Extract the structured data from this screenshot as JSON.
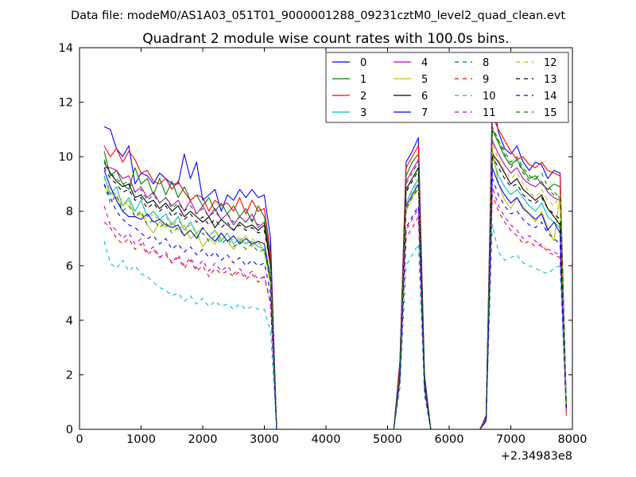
{
  "chart_data": {
    "type": "line",
    "suptitle": "Data file: modeM0/AS1A03_051T01_9000001288_09231cztM0_level2_quad_clean.evt",
    "title": "Quadrant 2 module wise count rates with 100.0s bins.",
    "xlabel": "",
    "ylabel": "",
    "x_offset_label": "+2.34983e8",
    "xlim": [
      0,
      8000
    ],
    "ylim": [
      0,
      14
    ],
    "xticks": [
      0,
      1000,
      2000,
      3000,
      4000,
      5000,
      6000,
      7000,
      8000
    ],
    "yticks": [
      0,
      2,
      4,
      6,
      8,
      10,
      12,
      14
    ],
    "legend_position": "top-right",
    "x": [
      400,
      500,
      600,
      700,
      800,
      900,
      1000,
      1100,
      1200,
      1300,
      1400,
      1500,
      1600,
      1700,
      1800,
      1900,
      2000,
      2100,
      2200,
      2300,
      2400,
      2500,
      2600,
      2700,
      2800,
      2900,
      3000,
      3100,
      3200,
      3300,
      5100,
      5200,
      5300,
      5400,
      5500,
      5600,
      5700,
      5800,
      6500,
      6600,
      6700,
      6800,
      6900,
      7000,
      7100,
      7200,
      7300,
      7400,
      7500,
      7600,
      7700,
      7800,
      7900
    ],
    "series": [
      {
        "name": "0",
        "color": "#0000ff",
        "dash": "solid",
        "values": [
          11.1,
          11.0,
          10.3,
          10.0,
          10.4,
          9.0,
          9.4,
          9.3,
          9.0,
          9.4,
          9.2,
          9.0,
          9.0,
          10.1,
          9.2,
          9.8,
          8.4,
          8.6,
          8.8,
          8.0,
          8.6,
          8.4,
          8.8,
          8.5,
          8.8,
          8.5,
          8.6,
          7.0,
          0.0,
          0.0,
          0.0,
          2.5,
          9.8,
          10.2,
          10.7,
          2.0,
          0.0,
          0.0,
          0.0,
          0.5,
          12.2,
          10.9,
          10.3,
          10.1,
          10.4,
          9.8,
          9.5,
          9.8,
          9.7,
          9.2,
          9.5,
          9.4,
          1.0
        ]
      },
      {
        "name": "1",
        "color": "#008000",
        "dash": "solid",
        "values": [
          10.2,
          9.3,
          9.5,
          9.0,
          8.8,
          9.6,
          9.0,
          9.2,
          8.6,
          9.2,
          8.6,
          9.1,
          8.5,
          8.9,
          8.4,
          8.6,
          8.2,
          8.5,
          8.0,
          8.3,
          7.9,
          8.2,
          7.8,
          8.1,
          7.6,
          8.2,
          7.8,
          6.3,
          0.0,
          0.0,
          0.0,
          2.3,
          9.3,
          9.8,
          10.1,
          1.9,
          0.0,
          0.0,
          0.0,
          0.5,
          11.0,
          10.5,
          10.0,
          9.7,
          9.9,
          9.5,
          9.2,
          9.3,
          9.0,
          8.8,
          9.0,
          8.9,
          0.9
        ]
      },
      {
        "name": "2",
        "color": "#ff0000",
        "dash": "solid",
        "values": [
          10.4,
          10.0,
          10.3,
          9.8,
          10.2,
          9.9,
          9.4,
          9.5,
          9.1,
          9.0,
          9.2,
          8.8,
          9.1,
          8.7,
          8.4,
          8.6,
          8.5,
          8.0,
          8.4,
          8.2,
          8.3,
          8.0,
          8.5,
          7.9,
          8.4,
          8.0,
          8.1,
          6.5,
          0.0,
          0.0,
          0.0,
          2.4,
          9.6,
          10.0,
          10.4,
          1.9,
          0.0,
          0.0,
          0.0,
          0.5,
          11.5,
          11.0,
          10.6,
          10.2,
          9.9,
          10.0,
          9.7,
          9.6,
          9.8,
          9.5,
          9.4,
          9.3,
          0.5
        ]
      },
      {
        "name": "3",
        "color": "#00bfbf",
        "dash": "solid",
        "values": [
          9.3,
          8.6,
          8.9,
          8.2,
          8.5,
          8.0,
          8.4,
          7.8,
          8.0,
          7.7,
          7.9,
          7.5,
          7.8,
          7.3,
          7.6,
          7.2,
          7.4,
          7.1,
          7.3,
          6.9,
          7.2,
          6.8,
          7.0,
          6.8,
          6.9,
          6.7,
          6.6,
          5.5,
          0.0,
          0.0,
          0.0,
          2.0,
          8.3,
          8.8,
          9.2,
          1.7,
          0.0,
          0.0,
          0.0,
          0.4,
          10.0,
          9.3,
          8.9,
          8.6,
          8.8,
          8.5,
          8.2,
          8.0,
          8.3,
          7.8,
          7.6,
          7.4,
          0.8
        ]
      },
      {
        "name": "4",
        "color": "#bf00bf",
        "dash": "solid",
        "values": [
          9.6,
          9.6,
          9.5,
          9.2,
          9.3,
          8.7,
          8.9,
          8.5,
          8.7,
          8.3,
          8.5,
          8.2,
          8.4,
          8.0,
          8.4,
          7.9,
          8.2,
          7.8,
          8.1,
          7.7,
          7.9,
          7.5,
          7.8,
          7.6,
          7.9,
          7.4,
          7.6,
          6.2,
          0.0,
          0.0,
          0.0,
          2.2,
          9.1,
          9.5,
          9.9,
          1.8,
          0.0,
          0.0,
          0.0,
          0.5,
          10.6,
          10.1,
          9.7,
          9.4,
          9.6,
          9.2,
          9.0,
          8.9,
          9.1,
          8.7,
          8.5,
          8.4,
          0.8
        ]
      },
      {
        "name": "5",
        "color": "#bfbf00",
        "dash": "solid",
        "values": [
          8.9,
          8.7,
          8.5,
          8.2,
          8.4,
          7.8,
          7.9,
          7.5,
          7.2,
          7.6,
          7.4,
          7.6,
          7.3,
          7.5,
          7.0,
          7.2,
          6.7,
          7.0,
          6.8,
          7.2,
          6.9,
          6.6,
          6.9,
          7.1,
          6.7,
          6.9,
          6.5,
          5.3,
          0.0,
          0.0,
          0.0,
          1.9,
          8.0,
          8.5,
          8.8,
          1.6,
          0.0,
          0.0,
          0.0,
          0.4,
          10.3,
          9.0,
          8.4,
          8.1,
          8.5,
          8.2,
          7.9,
          7.6,
          8.0,
          7.4,
          6.9,
          8.6,
          0.7
        ]
      },
      {
        "name": "6",
        "color": "#000000",
        "dash": "solid",
        "values": [
          9.8,
          9.4,
          9.1,
          8.9,
          9.0,
          8.5,
          8.6,
          8.3,
          8.4,
          8.1,
          8.3,
          8.0,
          8.2,
          7.8,
          8.0,
          7.8,
          7.6,
          7.8,
          7.4,
          7.7,
          7.5,
          7.3,
          7.6,
          7.4,
          7.5,
          7.3,
          7.5,
          6.0,
          0.0,
          0.0,
          0.0,
          2.1,
          8.8,
          9.2,
          9.6,
          1.8,
          0.0,
          0.0,
          0.0,
          0.4,
          10.1,
          9.8,
          9.4,
          9.0,
          9.2,
          8.8,
          8.6,
          8.4,
          8.6,
          8.1,
          7.8,
          7.5,
          0.8
        ]
      },
      {
        "name": "7",
        "color": "#0000ff",
        "dash": "solid",
        "values": [
          9.5,
          8.9,
          8.4,
          8.0,
          7.8,
          7.8,
          7.7,
          7.9,
          7.6,
          7.7,
          7.5,
          7.4,
          7.5,
          7.1,
          7.3,
          7.0,
          7.4,
          7.1,
          6.9,
          7.2,
          6.9,
          7.1,
          6.8,
          7.0,
          6.8,
          6.9,
          6.8,
          5.5,
          0.0,
          0.0,
          0.0,
          2.0,
          8.2,
          8.6,
          9.0,
          1.6,
          0.0,
          0.0,
          0.0,
          0.4,
          9.6,
          9.0,
          8.6,
          8.3,
          8.5,
          8.1,
          7.9,
          7.7,
          7.9,
          7.3,
          7.6,
          7.2,
          0.8
        ]
      },
      {
        "name": "8",
        "color": "#008000",
        "dash": "dashed",
        "values": [
          9.0,
          8.3,
          8.6,
          8.0,
          8.2,
          7.8,
          8.0,
          7.5,
          7.7,
          7.4,
          7.6,
          7.2,
          7.4,
          7.1,
          7.3,
          7.0,
          7.2,
          6.9,
          7.1,
          6.8,
          7.0,
          6.7,
          6.9,
          6.6,
          6.8,
          6.5,
          6.6,
          5.4,
          0.0,
          0.0,
          0.0,
          2.0,
          8.1,
          8.5,
          8.9,
          1.6,
          0.0,
          0.0,
          0.0,
          0.4,
          11.0,
          10.6,
          10.1,
          9.6,
          9.9,
          9.4,
          9.1,
          9.2,
          9.0,
          8.8,
          8.6,
          8.5,
          0.9
        ]
      },
      {
        "name": "9",
        "color": "#ff0000",
        "dash": "dashed",
        "values": [
          7.6,
          7.4,
          7.0,
          6.8,
          7.0,
          6.6,
          6.8,
          6.4,
          6.6,
          6.3,
          6.4,
          6.1,
          6.3,
          5.9,
          6.2,
          5.8,
          6.0,
          5.6,
          5.9,
          5.7,
          5.8,
          5.6,
          5.8,
          5.5,
          5.7,
          5.4,
          5.6,
          4.6,
          0.0,
          0.0,
          0.0,
          1.7,
          7.0,
          7.4,
          7.8,
          1.4,
          0.0,
          0.0,
          0.0,
          0.3,
          8.6,
          8.0,
          7.6,
          7.3,
          7.1,
          6.8,
          6.9,
          6.7,
          6.8,
          6.5,
          6.4,
          6.3,
          0.6
        ]
      },
      {
        "name": "10",
        "color": "#00bfbf",
        "dash": "dashed",
        "values": [
          6.9,
          6.1,
          5.9,
          6.2,
          5.8,
          6.0,
          5.7,
          5.6,
          5.4,
          5.2,
          5.1,
          4.9,
          5.0,
          4.7,
          4.9,
          4.6,
          4.8,
          4.5,
          4.7,
          4.5,
          4.6,
          4.4,
          4.6,
          4.4,
          4.5,
          4.4,
          4.4,
          3.6,
          0.0,
          0.0,
          0.0,
          1.5,
          6.0,
          6.4,
          6.8,
          1.2,
          0.0,
          0.0,
          0.0,
          0.3,
          7.5,
          6.5,
          6.2,
          6.3,
          6.4,
          6.1,
          6.0,
          5.9,
          5.8,
          5.7,
          5.9,
          6.0,
          0.6
        ]
      },
      {
        "name": "11",
        "color": "#bf00bf",
        "dash": "dashed",
        "values": [
          8.2,
          7.5,
          7.3,
          7.0,
          7.2,
          6.8,
          7.0,
          6.5,
          6.7,
          6.3,
          6.5,
          6.1,
          6.4,
          6.0,
          6.3,
          5.9,
          6.2,
          5.8,
          6.1,
          5.8,
          6.0,
          5.7,
          5.9,
          5.6,
          5.8,
          5.5,
          5.6,
          4.7,
          0.0,
          0.0,
          0.0,
          1.8,
          7.3,
          7.7,
          8.1,
          1.5,
          0.0,
          0.0,
          0.0,
          0.3,
          8.9,
          8.2,
          7.8,
          7.5,
          7.3,
          7.0,
          7.1,
          6.9,
          6.7,
          6.6,
          6.5,
          6.4,
          0.6
        ]
      },
      {
        "name": "12",
        "color": "#bfbf00",
        "dash": "dashed",
        "values": [
          9.2,
          8.8,
          8.6,
          8.4,
          8.2,
          8.0,
          7.9,
          7.7,
          7.9,
          7.6,
          7.8,
          7.4,
          7.7,
          7.3,
          7.5,
          7.2,
          7.4,
          7.1,
          7.3,
          7.0,
          7.2,
          6.9,
          7.1,
          6.8,
          7.0,
          6.8,
          6.9,
          5.7,
          0.0,
          0.0,
          0.0,
          2.0,
          8.3,
          8.7,
          9.1,
          1.6,
          0.0,
          0.0,
          0.0,
          0.4,
          10.5,
          9.9,
          9.5,
          9.2,
          9.4,
          9.0,
          8.7,
          8.5,
          8.8,
          8.4,
          8.2,
          8.6,
          0.8
        ]
      },
      {
        "name": "13",
        "color": "#000000",
        "dash": "dashed",
        "values": [
          9.6,
          9.2,
          9.0,
          8.7,
          8.8,
          8.4,
          8.5,
          8.1,
          8.3,
          8.0,
          8.2,
          7.8,
          8.0,
          7.7,
          7.9,
          7.6,
          7.8,
          7.5,
          7.7,
          7.4,
          7.6,
          7.3,
          7.5,
          7.3,
          7.4,
          7.2,
          7.3,
          6.0,
          0.0,
          0.0,
          0.0,
          2.1,
          8.7,
          9.1,
          9.5,
          1.7,
          0.0,
          0.0,
          0.0,
          0.4,
          10.0,
          9.6,
          9.2,
          8.9,
          9.0,
          8.6,
          8.4,
          8.3,
          8.5,
          8.1,
          7.9,
          7.7,
          0.8
        ]
      },
      {
        "name": "14",
        "color": "#0000ff",
        "dash": "dashed",
        "values": [
          9.0,
          8.5,
          8.0,
          7.7,
          7.5,
          7.4,
          7.2,
          7.0,
          7.1,
          6.8,
          7.0,
          6.6,
          6.8,
          6.5,
          6.7,
          6.4,
          6.6,
          6.3,
          6.5,
          6.2,
          6.4,
          6.1,
          6.3,
          6.0,
          6.2,
          6.0,
          6.1,
          5.0,
          0.0,
          0.0,
          0.0,
          1.8,
          7.4,
          7.8,
          8.2,
          1.5,
          0.0,
          0.0,
          0.0,
          0.3,
          9.2,
          8.6,
          8.2,
          7.9,
          8.0,
          7.7,
          7.5,
          7.4,
          7.6,
          7.2,
          7.0,
          6.8,
          0.7
        ]
      },
      {
        "name": "15",
        "color": "#008000",
        "dash": "dashed",
        "values": [
          9.9,
          9.4,
          9.2,
          9.0,
          9.1,
          8.7,
          8.8,
          8.4,
          8.6,
          8.3,
          8.5,
          8.1,
          8.3,
          8.0,
          8.2,
          7.9,
          8.1,
          7.8,
          8.0,
          7.7,
          7.9,
          7.6,
          7.8,
          7.6,
          7.7,
          7.5,
          7.6,
          6.2,
          0.0,
          0.0,
          0.0,
          2.2,
          9.0,
          9.4,
          9.8,
          1.8,
          0.0,
          0.0,
          0.0,
          0.4,
          11.1,
          10.6,
          10.2,
          9.8,
          10.0,
          9.6,
          9.3,
          9.2,
          9.4,
          8.9,
          8.7,
          8.5,
          0.9
        ]
      }
    ]
  }
}
